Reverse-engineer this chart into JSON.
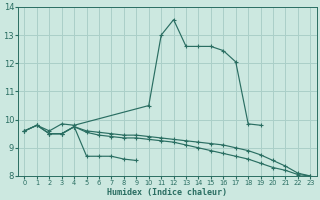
{
  "bg_color": "#cce8e0",
  "grid_color": "#aacfc8",
  "line_color": "#2a6e62",
  "xlabel": "Humidex (Indice chaleur)",
  "xlim": [
    -0.5,
    23.5
  ],
  "ylim": [
    8,
    14
  ],
  "yticks": [
    8,
    9,
    10,
    11,
    12,
    13,
    14
  ],
  "xticks": [
    0,
    1,
    2,
    3,
    4,
    5,
    6,
    7,
    8,
    9,
    10,
    11,
    12,
    13,
    14,
    15,
    16,
    17,
    18,
    19,
    20,
    21,
    22,
    23
  ],
  "lines": [
    {
      "x": [
        0,
        1,
        2,
        3,
        4,
        10,
        11,
        12,
        13,
        14,
        15,
        16,
        17,
        18,
        19
      ],
      "y": [
        9.6,
        9.8,
        9.6,
        9.85,
        9.8,
        10.5,
        13.0,
        13.55,
        12.6,
        12.6,
        12.6,
        12.45,
        12.05,
        9.85,
        9.8
      ]
    },
    {
      "x": [
        0,
        1,
        2,
        3,
        4,
        5,
        6,
        7,
        8,
        9,
        10,
        11,
        12,
        13,
        14,
        15,
        16,
        17,
        18,
        19,
        20,
        21,
        22,
        23
      ],
      "y": [
        9.6,
        9.8,
        9.5,
        9.5,
        9.75,
        9.6,
        9.55,
        9.5,
        9.45,
        9.45,
        9.4,
        9.35,
        9.3,
        9.25,
        9.2,
        9.15,
        9.1,
        9.0,
        8.9,
        8.75,
        8.55,
        8.35,
        8.1,
        8.0
      ]
    },
    {
      "x": [
        2,
        3,
        4,
        5,
        6,
        7,
        8,
        9
      ],
      "y": [
        9.5,
        9.5,
        9.75,
        8.7,
        8.7,
        8.7,
        8.6,
        8.55
      ]
    },
    {
      "x": [
        0,
        1,
        2,
        3,
        4,
        5,
        6,
        7,
        8,
        9,
        10,
        11,
        12,
        13,
        14,
        15,
        16,
        17,
        18,
        19,
        20,
        21,
        22,
        23
      ],
      "y": [
        9.6,
        9.8,
        9.5,
        9.5,
        9.75,
        9.55,
        9.45,
        9.4,
        9.35,
        9.35,
        9.3,
        9.25,
        9.2,
        9.1,
        9.0,
        8.9,
        8.8,
        8.7,
        8.6,
        8.45,
        8.3,
        8.2,
        8.05,
        8.0
      ]
    }
  ]
}
